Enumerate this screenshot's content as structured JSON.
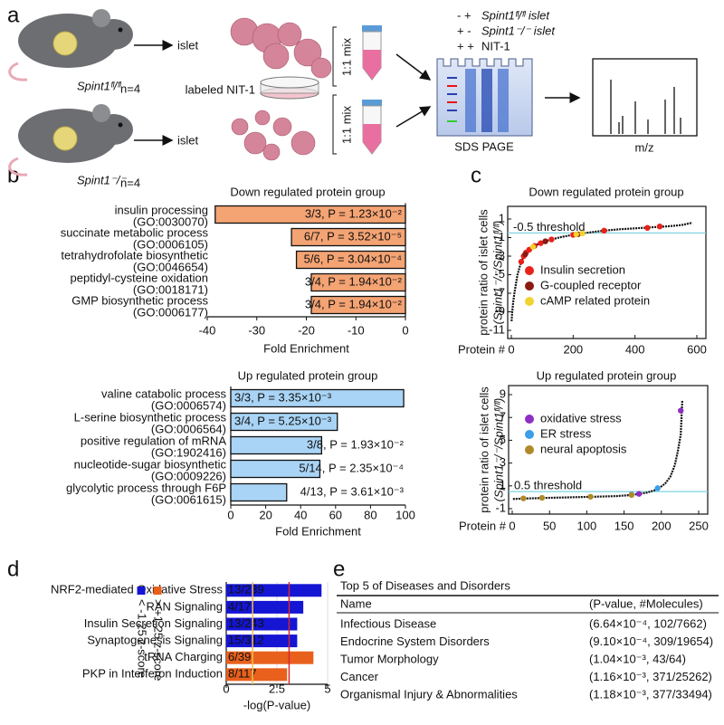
{
  "panel_labels": [
    "a",
    "b",
    "c",
    "d",
    "e"
  ],
  "schematic": {
    "mouse_labels": [
      "Spint1ᶠˡ/ᶠˡ",
      "Spint1⁻/⁻"
    ],
    "n_labels": [
      "n=4",
      "n=4"
    ],
    "islet_labels": [
      "islet",
      "islet"
    ],
    "nit_label": "labeled NIT-1",
    "mix_labels": [
      "1:1 mix",
      "1:1 mix"
    ],
    "lane_rows": [
      {
        "signs": "-  +",
        "label": "Spint1ᶠˡ/ᶠˡ islet"
      },
      {
        "signs": "+  -",
        "label": "Spint1⁻/⁻ islet"
      },
      {
        "signs": "+  +",
        "label": "NIT-1"
      }
    ],
    "gel_label": "SDS PAGE",
    "ms_label": "m/z"
  },
  "chart_data": [
    {
      "type": "hbar",
      "title": "Down regulated protein group",
      "categories": [
        "insulin processing",
        "succinate metabolic process",
        "tetrahydrofolate biosynthetic",
        "peptidyl-cysteine oxidation",
        "GMP biosynthetic process"
      ],
      "category_ids": [
        "(GO:0030070)",
        "(GO:0006105)",
        "(GO:0046654)",
        "(GO:0018171)",
        "(GO:0006177)"
      ],
      "values": [
        -38.4,
        -23,
        -22,
        -19,
        -19
      ],
      "annotations": [
        "3/3, P = 1.23×10⁻²",
        "6/7, P = 3.52×10⁻⁵",
        "5/6, P = 3.04×10⁻⁴",
        "3/4, P = 1.94×10⁻²",
        "3/4, P = 1.94×10⁻²"
      ],
      "color": "#f4a373",
      "xlim": [
        -40,
        0
      ],
      "xticks": [
        -40,
        -30,
        -20,
        -10,
        0
      ],
      "xlabel": "Fold Enrichment"
    },
    {
      "type": "hbar",
      "title": "Up regulated protein group",
      "categories": [
        "valine catabolic process",
        "L-serine biosynthetic process",
        "positive regulation of mRNA",
        "nucleotide-sugar biosynthetic",
        "glycolytic process through F6P"
      ],
      "category_ids": [
        "(GO:0006574)",
        "(GO:0006564)",
        "(GO:1902416)",
        "(GO:0009226)",
        "(GO:0061615)"
      ],
      "values": [
        99,
        61,
        52,
        51,
        32
      ],
      "annotations": [
        "3/3, P = 3.35×10⁻³",
        "3/4, P = 5.25×10⁻³",
        "3/8, P = 1.93×10⁻²",
        "5/14, P = 2.35×10⁻⁴",
        "4/13, P = 3.61×10⁻³"
      ],
      "color": "#a9d4f5",
      "xlim": [
        0,
        100
      ],
      "xticks": [
        0,
        20,
        40,
        60,
        80,
        100
      ],
      "xlabel": "Fold Enrichment"
    },
    {
      "type": "scatter",
      "title": "Down regulated protein group",
      "xlabel": "Protein #",
      "ylabel": "protein ratio of islet cells",
      "ylabel_sub": "(Spint1⁻/⁻/Spint1ᶠˡ/ᶠˡ)",
      "xlim": [
        0,
        600
      ],
      "xticks": [
        0,
        200,
        400,
        600
      ],
      "ylim": [
        -11,
        1
      ],
      "yticks": [
        1,
        -1,
        -3,
        -5,
        -7,
        -9,
        -11
      ],
      "threshold": {
        "value": -0.5,
        "label": "-0.5 threshold"
      },
      "series": [
        {
          "mode": "line",
          "color": "#111111",
          "x": [
            1,
            3,
            6,
            10,
            15,
            20,
            30,
            40,
            50,
            60,
            80,
            100,
            130,
            160,
            200,
            250,
            300,
            350,
            400,
            450,
            500,
            550,
            585
          ],
          "values": [
            -10.0,
            -9.0,
            -8.0,
            -7.0,
            -6.0,
            -5.0,
            -3.8,
            -3.0,
            -2.5,
            -2.2,
            -1.8,
            -1.5,
            -1.2,
            -0.95,
            -0.7,
            -0.45,
            -0.25,
            -0.1,
            0,
            0.1,
            0.2,
            0.35,
            0.6
          ]
        },
        {
          "mode": "markers",
          "name": "Insulin secretion",
          "color": "#e8221b",
          "x": [
            32,
            40,
            48,
            58,
            75,
            95,
            130,
            200,
            300,
            440,
            480
          ],
          "values": [
            -3.6,
            -3.0,
            -2.6,
            -2.3,
            -1.9,
            -1.6,
            -1.2,
            -0.7,
            -0.25,
            0.05,
            0.2
          ]
        },
        {
          "mode": "markers",
          "name": "G-coupled receptor",
          "color": "#8b1a10",
          "x": [
            45,
            110,
            215
          ],
          "values": [
            -2.8,
            -1.4,
            -0.65
          ]
        },
        {
          "mode": "markers",
          "name": "cAMP related protein",
          "color": "#f2d22e",
          "x": [
            70,
            210,
            230
          ],
          "values": [
            -2.0,
            -0.65,
            -0.55
          ]
        }
      ]
    },
    {
      "type": "scatter",
      "title": "Up regulated protein group",
      "xlabel": "Protein #",
      "ylabel": "protein ratio of islet cells",
      "ylabel_sub": "(Spint1⁻/⁻/Spint1ᶠˡ/ᶠˡ)",
      "xlim": [
        0,
        250
      ],
      "xticks": [
        0,
        50,
        100,
        150,
        200,
        250
      ],
      "ylim": [
        -1,
        9
      ],
      "yticks": [
        -1,
        1,
        3,
        5,
        7,
        9
      ],
      "threshold": {
        "value": 0.5,
        "label": "0.5 threshold"
      },
      "series": [
        {
          "mode": "line",
          "color": "#111111",
          "x": [
            1,
            20,
            50,
            80,
            110,
            140,
            160,
            180,
            195,
            205,
            212,
            218,
            222,
            226,
            228
          ],
          "values": [
            -0.15,
            -0.1,
            -0.05,
            0,
            0.05,
            0.1,
            0.2,
            0.4,
            0.7,
            1.2,
            1.8,
            2.8,
            4,
            5.5,
            8.5
          ]
        },
        {
          "mode": "markers",
          "name": "oxidative stress",
          "color": "#8e2ec4",
          "x": [
            170,
            226
          ],
          "values": [
            0.3,
            7.6
          ]
        },
        {
          "mode": "markers",
          "name": "ER stress",
          "color": "#3a9ee8",
          "x": [
            160,
            195
          ],
          "values": [
            0.25,
            0.8
          ]
        },
        {
          "mode": "markers",
          "name": "neural apoptosis",
          "color": "#b08a2a",
          "x": [
            15,
            40,
            105,
            160
          ],
          "values": [
            -0.1,
            -0.05,
            0.05,
            0.2
          ]
        }
      ]
    },
    {
      "type": "hbar",
      "categories": [
        "NRF2-mediated Oxidative Stress",
        "RAN Signaling",
        "Insulin Secretion Signaling",
        "Synaptogenesis Signaling",
        "tRNA Charging",
        "PKP in Interferon Induction"
      ],
      "values": [
        4.7,
        3.8,
        3.5,
        3.5,
        4.3,
        3.0
      ],
      "annotations": [
        "13/239",
        "4/17",
        "13/243",
        "15/312",
        "6/39",
        "8/117"
      ],
      "colors": [
        "#1515d4",
        "#1515d4",
        "#1515d4",
        "#1515d4",
        "#e8601c",
        "#e8601c"
      ],
      "legend": [
        {
          "label": "< -1.25 z-score",
          "color": "#1515d4"
        },
        {
          "label": "> +1.25 z-score",
          "color": "#e8601c"
        }
      ],
      "thresholds": [
        {
          "value": 1.3,
          "color": "#f2c14e"
        },
        {
          "value": 3.1,
          "color": "#d6262e"
        }
      ],
      "grid": true,
      "xlim": [
        0,
        5
      ],
      "xticks": [
        0,
        2.5,
        5
      ],
      "xlabel": "-log(P-value)"
    }
  ],
  "table": {
    "title": "Top 5 of Diseases and Disorders",
    "columns": [
      "Name",
      "(P-value, #Molecules)"
    ],
    "rows": [
      [
        "Infectious Disease",
        "(6.64×10⁻⁴, 102/7662)"
      ],
      [
        "Endocrine System Disorders",
        "(9.10×10⁻⁴, 309/19654)"
      ],
      [
        "Tumor Morphology",
        "(1.04×10⁻³, 43/64)"
      ],
      [
        "Cancer",
        "(1.16×10⁻³, 371/25262)"
      ],
      [
        "Organismal Injury & Abnormalities",
        "(1.18×10⁻³, 377/33494)"
      ]
    ]
  }
}
